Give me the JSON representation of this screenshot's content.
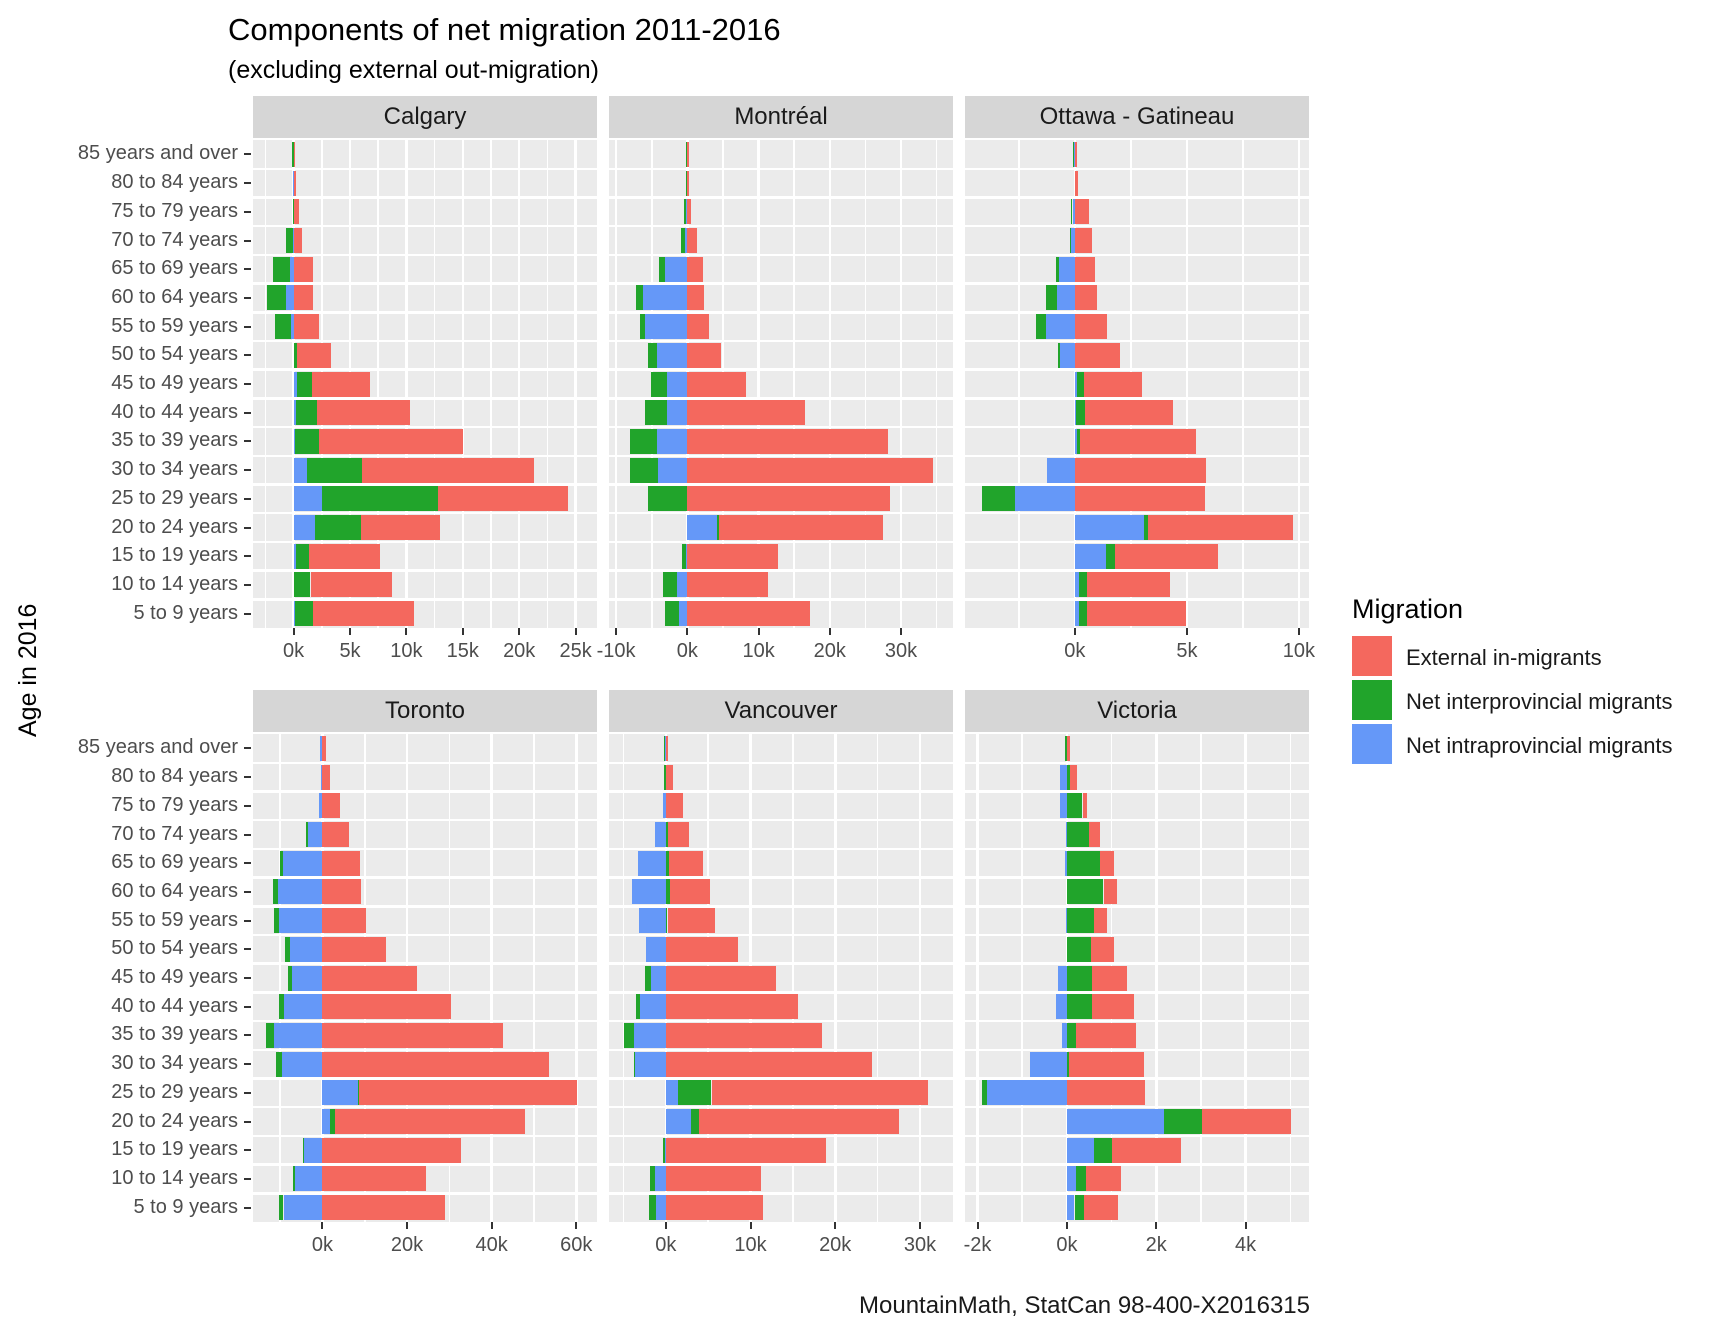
{
  "page": {
    "title": "Components of net migration 2011-2016",
    "subtitle": "(excluding external out-migration)",
    "y_axis_label": "Age in 2016",
    "caption": "MountainMath, StatCan 98-400-X2016315"
  },
  "legend": {
    "title": "Migration",
    "items": [
      {
        "label": "External in-migrants",
        "color": "#f4685e"
      },
      {
        "label": "Net interprovincial migrants",
        "color": "#21a42b"
      },
      {
        "label": "Net intraprovincial migrants",
        "color": "#6598f8"
      }
    ]
  },
  "chart_data": {
    "type": "bar",
    "orientation": "horizontal",
    "stacked": true,
    "unit": "thousands of people (k)",
    "grid": true,
    "legend_position": "right",
    "age_groups": [
      "85 years and over",
      "80 to 84 years",
      "75 to 79 years",
      "70 to 74 years",
      "65 to 69 years",
      "60 to 64 years",
      "55 to 59 years",
      "50 to 54 years",
      "45 to 49 years",
      "40 to 44 years",
      "35 to 39 years",
      "30 to 34 years",
      "25 to 29 years",
      "20 to 24 years",
      "15 to 19 years",
      "10 to 14 years",
      "5 to 9 years"
    ],
    "series_names": [
      "External in-migrants",
      "Net interprovincial migrants",
      "Net intraprovincial migrants"
    ],
    "colors": {
      "external": "#f4685e",
      "interprovincial": "#21a42b",
      "intraprovincial": "#6598f8"
    },
    "facets": [
      {
        "name": "Calgary",
        "xlim": [
          -3.6,
          26.9
        ],
        "ticks": [
          {
            "v": 0,
            "label": "0k"
          },
          {
            "v": 5,
            "label": "5k"
          },
          {
            "v": 10,
            "label": "10k"
          },
          {
            "v": 15,
            "label": "15k"
          },
          {
            "v": 20,
            "label": "20k"
          },
          {
            "v": 25,
            "label": "25k"
          }
        ],
        "minor": [
          -2.5,
          2.5,
          7.5,
          12.5,
          17.5,
          22.5
        ],
        "external": [
          0.15,
          0.2,
          0.45,
          0.75,
          1.7,
          1.7,
          2.3,
          3.0,
          5.2,
          8.2,
          12.8,
          15.2,
          11.5,
          7.0,
          6.3,
          7.2,
          9.0
        ],
        "interprovincial": [
          -0.15,
          0,
          -0.05,
          -0.6,
          -1.5,
          -1.75,
          -1.4,
          0.3,
          1.3,
          1.9,
          2.1,
          4.9,
          10.3,
          4.1,
          1.2,
          1.5,
          1.6
        ],
        "intraprovincial": [
          0,
          -0.1,
          0,
          -0.05,
          -0.3,
          -0.65,
          -0.25,
          0,
          0.3,
          0.2,
          0.15,
          1.2,
          2.5,
          1.9,
          0.2,
          0,
          0.1
        ]
      },
      {
        "name": "Montréal",
        "xlim": [
          -11.0,
          37.3
        ],
        "ticks": [
          {
            "v": -10,
            "label": "-10k"
          },
          {
            "v": 0,
            "label": "0k"
          },
          {
            "v": 10,
            "label": "10k"
          },
          {
            "v": 20,
            "label": "20k"
          },
          {
            "v": 30,
            "label": "30k"
          }
        ],
        "minor": [
          -5,
          5,
          15,
          25,
          35
        ],
        "external": [
          0.2,
          0.25,
          0.55,
          1.3,
          2.2,
          2.4,
          3.0,
          4.7,
          8.3,
          16.6,
          28.2,
          34.5,
          28.5,
          23.0,
          12.8,
          11.4,
          17.3
        ],
        "interprovincial": [
          -0.2,
          -0.15,
          -0.25,
          -0.55,
          -0.9,
          -0.95,
          -0.8,
          -1.2,
          -2.3,
          -3.2,
          -3.9,
          -4.0,
          -5.4,
          0.3,
          -0.5,
          -1.9,
          -2.0
        ],
        "intraprovincial": [
          -0.05,
          -0.05,
          -0.2,
          -0.3,
          -3.1,
          -6.2,
          -5.9,
          -4.3,
          -2.8,
          -2.8,
          -4.2,
          -4.1,
          -0.1,
          4.2,
          -0.2,
          -1.5,
          -1.2
        ]
      },
      {
        "name": "Ottawa - Gatineau",
        "xlim": [
          -4.9,
          10.45
        ],
        "ticks": [
          {
            "v": 0,
            "label": "0k"
          },
          {
            "v": 5,
            "label": "5k"
          },
          {
            "v": 10,
            "label": "10k"
          }
        ],
        "minor": [
          -2.5,
          2.5,
          7.5
        ],
        "external": [
          0.1,
          0.15,
          0.65,
          0.75,
          0.9,
          1.0,
          1.45,
          2.0,
          2.6,
          3.95,
          5.15,
          5.85,
          5.8,
          6.5,
          4.6,
          3.7,
          4.4
        ],
        "interprovincial": [
          -0.05,
          0,
          -0.05,
          -0.05,
          -0.15,
          -0.5,
          -0.45,
          -0.1,
          0.3,
          0.4,
          0.15,
          0,
          -1.5,
          0.15,
          0.4,
          0.35,
          0.35
        ],
        "intraprovincial": [
          -0.02,
          0,
          -0.1,
          -0.15,
          -0.7,
          -0.8,
          -1.3,
          -0.65,
          0.1,
          0.05,
          0.1,
          -1.25,
          -2.65,
          3.1,
          1.4,
          0.2,
          0.2
        ]
      },
      {
        "name": "Toronto",
        "xlim": [
          -16.4,
          64.9
        ],
        "ticks": [
          {
            "v": 0,
            "label": "0k"
          },
          {
            "v": 20,
            "label": "20k"
          },
          {
            "v": 40,
            "label": "40k"
          },
          {
            "v": 60,
            "label": "60k"
          }
        ],
        "minor": [
          -10,
          10,
          30,
          50
        ],
        "external": [
          0.8,
          1.8,
          4.2,
          6.3,
          8.8,
          9.2,
          10.2,
          15.0,
          22.3,
          30.3,
          42.6,
          53.5,
          51.5,
          45.0,
          32.7,
          24.4,
          29.0
        ],
        "interprovincial": [
          0,
          0,
          0,
          -0.35,
          -0.7,
          -1.4,
          -1.2,
          -1.2,
          -0.9,
          -1.2,
          -2.0,
          -1.4,
          0.2,
          1.2,
          -0.2,
          -0.4,
          -1.0
        ],
        "intraprovincial": [
          -0.5,
          -0.4,
          -0.7,
          -3.5,
          -9.4,
          -10.4,
          -10.2,
          -7.6,
          -7.2,
          -9.0,
          -11.4,
          -9.6,
          8.5,
          1.8,
          -4.5,
          -6.5,
          -9.2
        ]
      },
      {
        "name": "Vancouver",
        "xlim": [
          -6.7,
          33.9
        ],
        "ticks": [
          {
            "v": 0,
            "label": "0k"
          },
          {
            "v": 10,
            "label": "10k"
          },
          {
            "v": 20,
            "label": "20k"
          },
          {
            "v": 30,
            "label": "30k"
          }
        ],
        "minor": [
          -5,
          5,
          15,
          25
        ],
        "external": [
          0.25,
          0.8,
          2.0,
          2.5,
          4.0,
          4.7,
          5.6,
          8.5,
          13.0,
          15.6,
          18.5,
          24.3,
          25.6,
          23.6,
          18.9,
          11.3,
          11.5
        ],
        "interprovincial": [
          -0.1,
          -0.25,
          0,
          0.3,
          0.4,
          0.5,
          0.2,
          0,
          -0.8,
          -0.5,
          -1.1,
          -0.1,
          4.0,
          0.9,
          -0.3,
          -0.6,
          -0.8
        ],
        "intraprovincial": [
          -0.15,
          0,
          -0.3,
          -1.3,
          -3.3,
          -4.0,
          -3.2,
          -2.3,
          -1.7,
          -3.0,
          -3.8,
          -3.7,
          1.4,
          3.0,
          -0.05,
          -1.3,
          -1.2
        ]
      },
      {
        "name": "Victoria",
        "xlim": [
          -2.28,
          5.42
        ],
        "ticks": [
          {
            "v": -2,
            "label": "-2k"
          },
          {
            "v": 0,
            "label": "0k"
          },
          {
            "v": 2,
            "label": "2k"
          },
          {
            "v": 4,
            "label": "4k"
          }
        ],
        "minor": [
          -1,
          1,
          3,
          5
        ],
        "external": [
          0.08,
          0.15,
          0.1,
          0.25,
          0.3,
          0.3,
          0.3,
          0.5,
          0.78,
          0.93,
          1.35,
          1.68,
          1.75,
          2.0,
          1.54,
          0.8,
          0.75
        ],
        "interprovincial": [
          -0.05,
          0.08,
          0.35,
          0.5,
          0.75,
          0.82,
          0.6,
          0.55,
          0.57,
          0.57,
          0.2,
          0.05,
          -0.12,
          0.84,
          0.41,
          0.21,
          0.22
        ],
        "intraprovincial": [
          0,
          -0.15,
          -0.15,
          -0.02,
          -0.05,
          0,
          -0.02,
          0,
          -0.19,
          -0.25,
          -0.1,
          -0.82,
          -1.78,
          2.18,
          0.6,
          0.21,
          0.17
        ]
      }
    ]
  }
}
